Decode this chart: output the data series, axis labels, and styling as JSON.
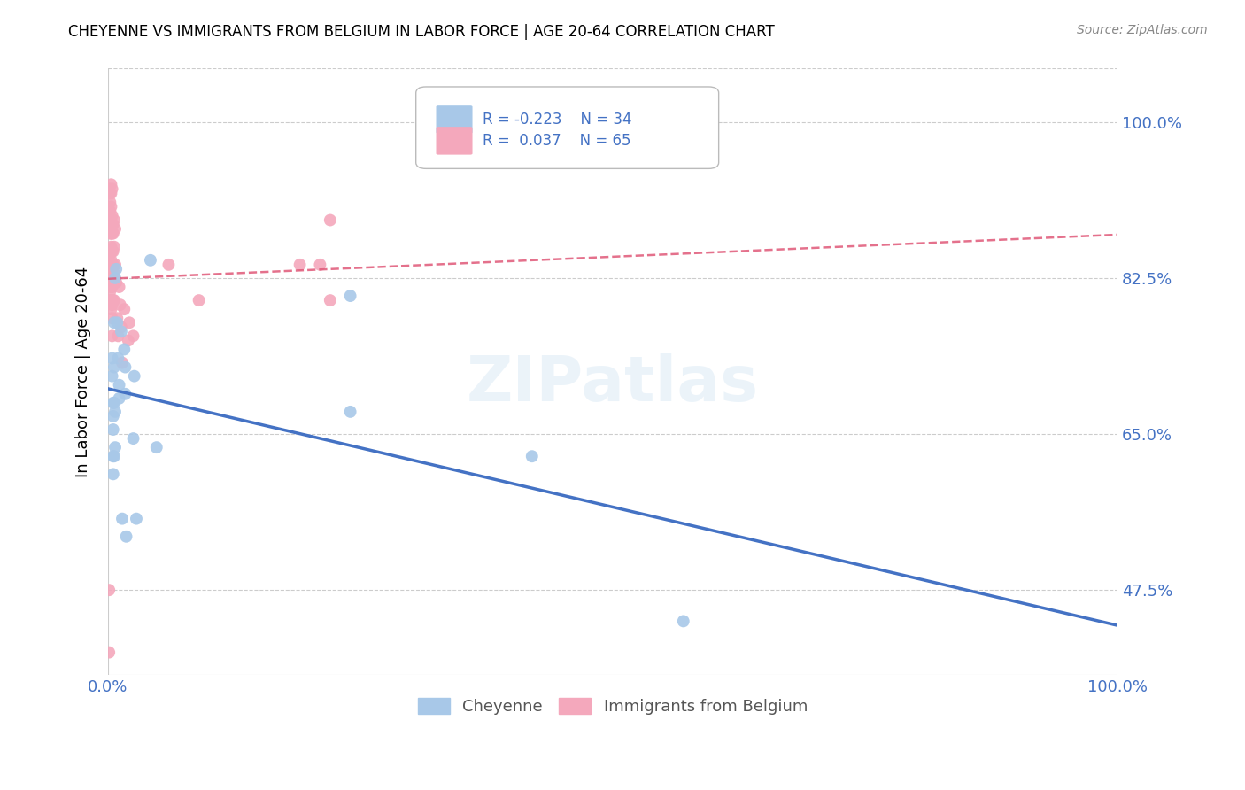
{
  "title": "CHEYENNE VS IMMIGRANTS FROM BELGIUM IN LABOR FORCE | AGE 20-64 CORRELATION CHART",
  "source": "Source: ZipAtlas.com",
  "ylabel": "In Labor Force | Age 20-64",
  "xlim": [
    0,
    1.0
  ],
  "ylim": [
    0.38,
    1.06
  ],
  "yticks": [
    0.475,
    0.65,
    0.825,
    1.0
  ],
  "ytick_labels": [
    "47.5%",
    "65.0%",
    "82.5%",
    "100.0%"
  ],
  "xticks": [
    0.0,
    0.25,
    0.5,
    0.75,
    1.0
  ],
  "xtick_labels": [
    "0.0%",
    "",
    "",
    "",
    "100.0%"
  ],
  "cheyenne_R": -0.223,
  "cheyenne_N": 34,
  "belgium_R": 0.037,
  "belgium_N": 65,
  "cheyenne_color": "#a8c8e8",
  "belgium_color": "#f4a8bc",
  "cheyenne_line_color": "#4472c4",
  "belgium_line_color": "#e05878",
  "watermark": "ZIPatlas",
  "cheyenne_x": [
    0.004,
    0.004,
    0.005,
    0.005,
    0.005,
    0.005,
    0.005,
    0.006,
    0.006,
    0.006,
    0.006,
    0.007,
    0.007,
    0.007,
    0.008,
    0.009,
    0.01,
    0.011,
    0.011,
    0.013,
    0.014,
    0.016,
    0.017,
    0.017,
    0.018,
    0.025,
    0.026,
    0.028,
    0.042,
    0.048,
    0.24,
    0.24,
    0.42,
    0.57
  ],
  "cheyenne_y": [
    0.735,
    0.715,
    0.685,
    0.67,
    0.655,
    0.625,
    0.605,
    0.775,
    0.725,
    0.685,
    0.625,
    0.825,
    0.675,
    0.635,
    0.835,
    0.775,
    0.735,
    0.705,
    0.69,
    0.765,
    0.555,
    0.745,
    0.725,
    0.695,
    0.535,
    0.645,
    0.715,
    0.555,
    0.845,
    0.635,
    0.805,
    0.675,
    0.625,
    0.44
  ],
  "belgium_x": [
    0.001,
    0.001,
    0.001,
    0.001,
    0.001,
    0.002,
    0.002,
    0.002,
    0.002,
    0.002,
    0.002,
    0.002,
    0.002,
    0.002,
    0.002,
    0.003,
    0.003,
    0.003,
    0.003,
    0.003,
    0.003,
    0.003,
    0.003,
    0.003,
    0.003,
    0.003,
    0.003,
    0.004,
    0.004,
    0.004,
    0.004,
    0.004,
    0.004,
    0.004,
    0.004,
    0.004,
    0.005,
    0.005,
    0.005,
    0.005,
    0.005,
    0.005,
    0.006,
    0.006,
    0.006,
    0.006,
    0.007,
    0.007,
    0.008,
    0.009,
    0.01,
    0.011,
    0.012,
    0.013,
    0.014,
    0.016,
    0.02,
    0.021,
    0.025,
    0.06,
    0.09,
    0.19,
    0.21,
    0.22,
    0.22
  ],
  "belgium_y": [
    0.405,
    0.475,
    0.925,
    0.885,
    0.85,
    0.84,
    0.83,
    0.83,
    0.82,
    0.81,
    0.8,
    0.92,
    0.91,
    0.9,
    0.875,
    0.93,
    0.92,
    0.905,
    0.89,
    0.875,
    0.86,
    0.845,
    0.835,
    0.825,
    0.815,
    0.8,
    0.79,
    0.925,
    0.895,
    0.875,
    0.855,
    0.835,
    0.815,
    0.795,
    0.78,
    0.76,
    0.885,
    0.875,
    0.855,
    0.84,
    0.82,
    0.8,
    0.89,
    0.86,
    0.83,
    0.8,
    0.88,
    0.84,
    0.82,
    0.78,
    0.76,
    0.815,
    0.795,
    0.77,
    0.73,
    0.79,
    0.755,
    0.775,
    0.76,
    0.84,
    0.8,
    0.84,
    0.84,
    0.8,
    0.89
  ]
}
